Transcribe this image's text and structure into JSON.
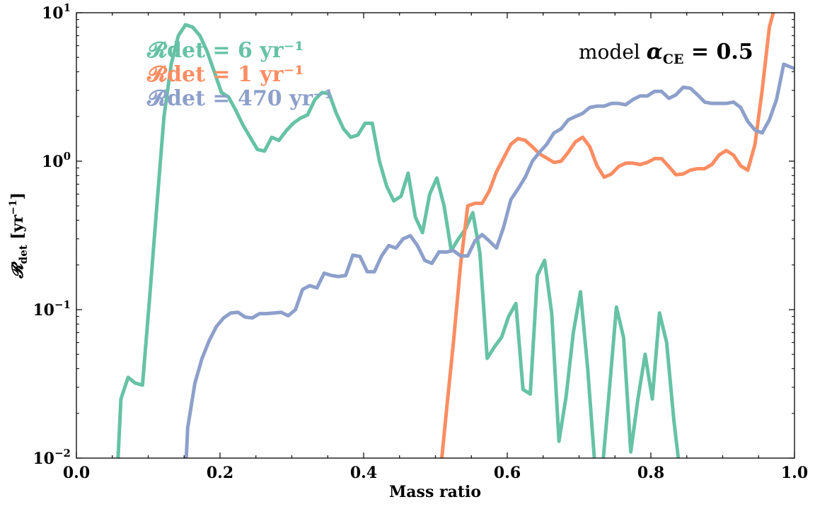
{
  "chart_data": {
    "type": "line",
    "title": "",
    "xlabel": "Mass ratio",
    "ylabel": "𝓡det [yr⁻¹]",
    "xlim": [
      0.0,
      1.0
    ],
    "ylim": [
      0.01,
      10
    ],
    "yscale": "log",
    "grid": false,
    "legend_position": "top-left",
    "x_ticks": [
      {
        "value": 0.0,
        "label": "0.0"
      },
      {
        "value": 0.2,
        "label": "0.2"
      },
      {
        "value": 0.4,
        "label": "0.4"
      },
      {
        "value": 0.6,
        "label": "0.6"
      },
      {
        "value": 0.8,
        "label": "0.8"
      },
      {
        "value": 1.0,
        "label": "1.0"
      }
    ],
    "y_ticks": [
      {
        "value": 0.01,
        "base": "10",
        "exp": "−2"
      },
      {
        "value": 0.1,
        "base": "10",
        "exp": "−1"
      },
      {
        "value": 1,
        "base": "10",
        "exp": "0"
      },
      {
        "value": 10,
        "base": "10",
        "exp": "1"
      }
    ],
    "annotation": {
      "prefix": "model ",
      "symbol": "α",
      "sub": "CE",
      "suffix": " = 0.5"
    },
    "series": [
      {
        "name": "𝓡det = 6 yr⁻¹",
        "color": "#66c2a5",
        "points": [
          [
            0.057,
            0.008
          ],
          [
            0.062,
            0.025
          ],
          [
            0.072,
            0.035
          ],
          [
            0.082,
            0.032
          ],
          [
            0.092,
            0.031
          ],
          [
            0.102,
            0.12
          ],
          [
            0.112,
            0.5
          ],
          [
            0.122,
            2.0
          ],
          [
            0.132,
            4.5
          ],
          [
            0.142,
            7.0
          ],
          [
            0.152,
            8.3
          ],
          [
            0.162,
            8.0
          ],
          [
            0.172,
            7.0
          ],
          [
            0.182,
            5.5
          ],
          [
            0.192,
            4.0
          ],
          [
            0.202,
            2.9
          ],
          [
            0.212,
            2.7
          ],
          [
            0.222,
            2.2
          ],
          [
            0.232,
            1.75
          ],
          [
            0.242,
            1.45
          ],
          [
            0.252,
            1.2
          ],
          [
            0.262,
            1.17
          ],
          [
            0.272,
            1.45
          ],
          [
            0.282,
            1.38
          ],
          [
            0.292,
            1.6
          ],
          [
            0.302,
            1.8
          ],
          [
            0.312,
            1.95
          ],
          [
            0.322,
            2.05
          ],
          [
            0.332,
            2.6
          ],
          [
            0.342,
            2.9
          ],
          [
            0.352,
            2.85
          ],
          [
            0.362,
            2.1
          ],
          [
            0.372,
            1.65
          ],
          [
            0.382,
            1.45
          ],
          [
            0.392,
            1.5
          ],
          [
            0.402,
            1.8
          ],
          [
            0.412,
            1.8
          ],
          [
            0.422,
            1.0
          ],
          [
            0.432,
            0.68
          ],
          [
            0.442,
            0.54
          ],
          [
            0.452,
            0.58
          ],
          [
            0.462,
            0.83
          ],
          [
            0.472,
            0.42
          ],
          [
            0.482,
            0.33
          ],
          [
            0.492,
            0.6
          ],
          [
            0.502,
            0.77
          ],
          [
            0.512,
            0.5
          ],
          [
            0.522,
            0.25
          ],
          [
            0.532,
            0.3
          ],
          [
            0.542,
            0.35
          ],
          [
            0.552,
            0.45
          ],
          [
            0.562,
            0.24
          ],
          [
            0.572,
            0.047
          ],
          [
            0.582,
            0.056
          ],
          [
            0.592,
            0.065
          ],
          [
            0.602,
            0.09
          ],
          [
            0.612,
            0.11
          ],
          [
            0.622,
            0.029
          ],
          [
            0.632,
            0.027
          ],
          [
            0.642,
            0.17
          ],
          [
            0.652,
            0.215
          ],
          [
            0.662,
            0.094
          ],
          [
            0.672,
            0.013
          ],
          [
            0.682,
            0.026
          ],
          [
            0.692,
            0.07
          ],
          [
            0.702,
            0.132
          ],
          [
            0.712,
            0.04
          ],
          [
            0.722,
            0.009
          ],
          [
            0.732,
            0.008
          ],
          [
            0.742,
            0.028
          ],
          [
            0.752,
            0.104
          ],
          [
            0.762,
            0.065
          ],
          [
            0.772,
            0.011
          ],
          [
            0.782,
            0.025
          ],
          [
            0.792,
            0.05
          ],
          [
            0.802,
            0.025
          ],
          [
            0.812,
            0.095
          ],
          [
            0.822,
            0.06
          ],
          [
            0.832,
            0.018
          ],
          [
            0.842,
            0.007
          ]
        ]
      },
      {
        "name": "𝓡det = 1 yr⁻¹",
        "color": "#fc8d62",
        "points": [
          [
            0.508,
            0.009
          ],
          [
            0.515,
            0.02
          ],
          [
            0.525,
            0.06
          ],
          [
            0.535,
            0.2
          ],
          [
            0.545,
            0.5
          ],
          [
            0.555,
            0.52
          ],
          [
            0.565,
            0.52
          ],
          [
            0.575,
            0.63
          ],
          [
            0.585,
            0.85
          ],
          [
            0.595,
            1.05
          ],
          [
            0.605,
            1.3
          ],
          [
            0.615,
            1.42
          ],
          [
            0.625,
            1.38
          ],
          [
            0.635,
            1.25
          ],
          [
            0.645,
            1.12
          ],
          [
            0.655,
            1.05
          ],
          [
            0.665,
            0.98
          ],
          [
            0.675,
            1.0
          ],
          [
            0.685,
            1.15
          ],
          [
            0.695,
            1.35
          ],
          [
            0.705,
            1.45
          ],
          [
            0.715,
            1.25
          ],
          [
            0.725,
            0.93
          ],
          [
            0.735,
            0.78
          ],
          [
            0.745,
            0.82
          ],
          [
            0.755,
            0.92
          ],
          [
            0.765,
            0.97
          ],
          [
            0.775,
            0.97
          ],
          [
            0.785,
            0.95
          ],
          [
            0.795,
            0.98
          ],
          [
            0.805,
            1.04
          ],
          [
            0.815,
            1.04
          ],
          [
            0.825,
            0.92
          ],
          [
            0.835,
            0.81
          ],
          [
            0.845,
            0.82
          ],
          [
            0.855,
            0.87
          ],
          [
            0.865,
            0.89
          ],
          [
            0.875,
            0.89
          ],
          [
            0.885,
            0.95
          ],
          [
            0.895,
            1.1
          ],
          [
            0.905,
            1.18
          ],
          [
            0.915,
            1.1
          ],
          [
            0.925,
            0.93
          ],
          [
            0.935,
            0.87
          ],
          [
            0.945,
            1.3
          ],
          [
            0.955,
            3.0
          ],
          [
            0.965,
            8.0
          ],
          [
            0.975,
            12.0
          ]
        ]
      },
      {
        "name": "𝓡det = 470 yr⁻¹",
        "color": "#8da0cb",
        "points": [
          [
            0.152,
            0.008
          ],
          [
            0.155,
            0.016
          ],
          [
            0.165,
            0.032
          ],
          [
            0.175,
            0.047
          ],
          [
            0.185,
            0.062
          ],
          [
            0.195,
            0.077
          ],
          [
            0.205,
            0.088
          ],
          [
            0.215,
            0.095
          ],
          [
            0.225,
            0.096
          ],
          [
            0.235,
            0.089
          ],
          [
            0.245,
            0.088
          ],
          [
            0.255,
            0.094
          ],
          [
            0.265,
            0.094
          ],
          [
            0.275,
            0.095
          ],
          [
            0.285,
            0.096
          ],
          [
            0.295,
            0.091
          ],
          [
            0.305,
            0.1
          ],
          [
            0.315,
            0.137
          ],
          [
            0.325,
            0.145
          ],
          [
            0.335,
            0.14
          ],
          [
            0.345,
            0.176
          ],
          [
            0.355,
            0.17
          ],
          [
            0.365,
            0.167
          ],
          [
            0.375,
            0.17
          ],
          [
            0.385,
            0.233
          ],
          [
            0.395,
            0.228
          ],
          [
            0.405,
            0.18
          ],
          [
            0.415,
            0.18
          ],
          [
            0.425,
            0.23
          ],
          [
            0.435,
            0.27
          ],
          [
            0.445,
            0.26
          ],
          [
            0.455,
            0.3
          ],
          [
            0.465,
            0.315
          ],
          [
            0.475,
            0.27
          ],
          [
            0.485,
            0.215
          ],
          [
            0.495,
            0.205
          ],
          [
            0.505,
            0.245
          ],
          [
            0.515,
            0.244
          ],
          [
            0.525,
            0.25
          ],
          [
            0.535,
            0.23
          ],
          [
            0.545,
            0.23
          ],
          [
            0.555,
            0.29
          ],
          [
            0.565,
            0.32
          ],
          [
            0.575,
            0.29
          ],
          [
            0.585,
            0.26
          ],
          [
            0.595,
            0.36
          ],
          [
            0.605,
            0.55
          ],
          [
            0.615,
            0.65
          ],
          [
            0.625,
            0.78
          ],
          [
            0.635,
            1.0
          ],
          [
            0.645,
            1.15
          ],
          [
            0.655,
            1.3
          ],
          [
            0.665,
            1.55
          ],
          [
            0.675,
            1.65
          ],
          [
            0.685,
            1.9
          ],
          [
            0.695,
            2.0
          ],
          [
            0.705,
            2.1
          ],
          [
            0.715,
            2.3
          ],
          [
            0.725,
            2.35
          ],
          [
            0.735,
            2.35
          ],
          [
            0.745,
            2.45
          ],
          [
            0.755,
            2.45
          ],
          [
            0.765,
            2.4
          ],
          [
            0.775,
            2.6
          ],
          [
            0.785,
            2.75
          ],
          [
            0.795,
            2.75
          ],
          [
            0.805,
            2.95
          ],
          [
            0.815,
            2.95
          ],
          [
            0.825,
            2.65
          ],
          [
            0.835,
            2.8
          ],
          [
            0.845,
            3.15
          ],
          [
            0.855,
            3.1
          ],
          [
            0.865,
            2.8
          ],
          [
            0.875,
            2.5
          ],
          [
            0.885,
            2.45
          ],
          [
            0.895,
            2.45
          ],
          [
            0.905,
            2.45
          ],
          [
            0.915,
            2.5
          ],
          [
            0.925,
            2.3
          ],
          [
            0.935,
            1.85
          ],
          [
            0.945,
            1.62
          ],
          [
            0.955,
            1.55
          ],
          [
            0.965,
            1.9
          ],
          [
            0.975,
            2.6
          ],
          [
            0.985,
            4.5
          ],
          [
            0.995,
            4.3
          ],
          [
            1.0,
            4.2
          ]
        ]
      }
    ]
  }
}
